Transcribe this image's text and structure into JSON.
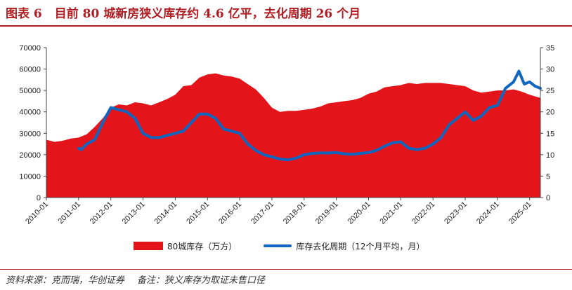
{
  "header": {
    "figure_label": "图表 6",
    "title": "目前 80 城新房狭义库存约 4.6 亿平，去化周期 26 个月"
  },
  "footer": {
    "source": "资料来源：克而瑞，华创证券",
    "note": "备注：狭义库存为取证未售口径"
  },
  "colors": {
    "area": "#e3151a",
    "line": "#1166c0",
    "accent": "#b01e23"
  },
  "chart_data": {
    "type": "area",
    "grid": false,
    "legend_position": "bottom",
    "x_tick_labels": [
      "2010-01",
      "2011-01",
      "2012-01",
      "2013-01",
      "2014-01",
      "2015-01",
      "2016-01",
      "2017-01",
      "2018-01",
      "2019-01",
      "2020-01",
      "2021-01",
      "2022-01",
      "2023-01",
      "2024-01",
      "2025-01"
    ],
    "y_left": {
      "min": 0,
      "max": 70000,
      "ticks": [
        "0",
        "10000",
        "20000",
        "30000",
        "40000",
        "50000",
        "60000",
        "70000"
      ]
    },
    "y_right": {
      "min": 0,
      "max": 35,
      "ticks": [
        "0",
        "5",
        "10",
        "15",
        "20",
        "25",
        "30",
        "35"
      ]
    },
    "x_range": [
      "2010-01",
      "2025-05"
    ],
    "series": [
      {
        "name": "80城库存（万方）",
        "kind": "area",
        "axis": "left",
        "points": [
          [
            "2010-01",
            27000
          ],
          [
            "2010-04",
            26000
          ],
          [
            "2010-07",
            26500
          ],
          [
            "2010-10",
            27500
          ],
          [
            "2011-01",
            28000
          ],
          [
            "2011-04",
            29500
          ],
          [
            "2011-07",
            33000
          ],
          [
            "2011-10",
            37000
          ],
          [
            "2012-01",
            42000
          ],
          [
            "2012-04",
            43500
          ],
          [
            "2012-07",
            43000
          ],
          [
            "2012-10",
            44500
          ],
          [
            "2013-01",
            44000
          ],
          [
            "2013-04",
            43000
          ],
          [
            "2013-07",
            44500
          ],
          [
            "2013-10",
            46000
          ],
          [
            "2014-01",
            48000
          ],
          [
            "2014-04",
            52000
          ],
          [
            "2014-07",
            52500
          ],
          [
            "2014-10",
            56000
          ],
          [
            "2015-01",
            57500
          ],
          [
            "2015-04",
            58000
          ],
          [
            "2015-07",
            57000
          ],
          [
            "2015-10",
            56500
          ],
          [
            "2016-01",
            55500
          ],
          [
            "2016-04",
            53000
          ],
          [
            "2016-07",
            50500
          ],
          [
            "2016-10",
            46500
          ],
          [
            "2017-01",
            42000
          ],
          [
            "2017-04",
            40000
          ],
          [
            "2017-07",
            40500
          ],
          [
            "2017-10",
            40500
          ],
          [
            "2018-01",
            41000
          ],
          [
            "2018-04",
            41500
          ],
          [
            "2018-07",
            42500
          ],
          [
            "2018-10",
            44000
          ],
          [
            "2019-01",
            44500
          ],
          [
            "2019-04",
            45000
          ],
          [
            "2019-07",
            45500
          ],
          [
            "2019-10",
            46500
          ],
          [
            "2020-01",
            48500
          ],
          [
            "2020-04",
            49500
          ],
          [
            "2020-07",
            51500
          ],
          [
            "2020-10",
            52000
          ],
          [
            "2021-01",
            52500
          ],
          [
            "2021-04",
            53500
          ],
          [
            "2021-07",
            53000
          ],
          [
            "2021-10",
            53500
          ],
          [
            "2022-01",
            53500
          ],
          [
            "2022-04",
            53500
          ],
          [
            "2022-07",
            53000
          ],
          [
            "2022-10",
            52500
          ],
          [
            "2023-01",
            52000
          ],
          [
            "2023-04",
            50000
          ],
          [
            "2023-07",
            49000
          ],
          [
            "2023-10",
            49500
          ],
          [
            "2024-01",
            50000
          ],
          [
            "2024-04",
            50000
          ],
          [
            "2024-07",
            50500
          ],
          [
            "2024-10",
            49500
          ],
          [
            "2025-01",
            48000
          ],
          [
            "2025-05",
            46500
          ]
        ]
      },
      {
        "name": "库存去化周期（12个月平均，月）",
        "kind": "line",
        "axis": "right",
        "points": [
          [
            "2011-01",
            11.5
          ],
          [
            "2011-02",
            11.2
          ],
          [
            "2011-04",
            12.5
          ],
          [
            "2011-07",
            13.5
          ],
          [
            "2011-10",
            17.5
          ],
          [
            "2012-01",
            21.0
          ],
          [
            "2012-04",
            20.5
          ],
          [
            "2012-07",
            20.0
          ],
          [
            "2012-10",
            18.5
          ],
          [
            "2013-01",
            15.0
          ],
          [
            "2013-04",
            14.0
          ],
          [
            "2013-07",
            14.0
          ],
          [
            "2013-10",
            14.5
          ],
          [
            "2014-01",
            15.0
          ],
          [
            "2014-04",
            15.5
          ],
          [
            "2014-07",
            17.5
          ],
          [
            "2014-10",
            19.5
          ],
          [
            "2015-01",
            19.5
          ],
          [
            "2015-04",
            18.5
          ],
          [
            "2015-07",
            16.0
          ],
          [
            "2015-10",
            15.5
          ],
          [
            "2016-01",
            15.0
          ],
          [
            "2016-04",
            12.5
          ],
          [
            "2016-07",
            11.0
          ],
          [
            "2016-10",
            10.0
          ],
          [
            "2017-01",
            9.5
          ],
          [
            "2017-04",
            9.0
          ],
          [
            "2017-07",
            8.8
          ],
          [
            "2017-10",
            9.2
          ],
          [
            "2018-01",
            10.0
          ],
          [
            "2018-04",
            10.3
          ],
          [
            "2018-07",
            10.4
          ],
          [
            "2018-10",
            10.4
          ],
          [
            "2019-01",
            10.5
          ],
          [
            "2019-04",
            10.2
          ],
          [
            "2019-07",
            10.1
          ],
          [
            "2019-10",
            10.3
          ],
          [
            "2020-01",
            10.5
          ],
          [
            "2020-04",
            11.0
          ],
          [
            "2020-07",
            12.0
          ],
          [
            "2020-10",
            12.8
          ],
          [
            "2021-01",
            13.0
          ],
          [
            "2021-04",
            11.5
          ],
          [
            "2021-07",
            11.2
          ],
          [
            "2021-10",
            11.5
          ],
          [
            "2022-01",
            12.5
          ],
          [
            "2022-04",
            14.0
          ],
          [
            "2022-07",
            17.0
          ],
          [
            "2022-10",
            18.5
          ],
          [
            "2023-01",
            20.0
          ],
          [
            "2023-04",
            18.0
          ],
          [
            "2023-07",
            19.0
          ],
          [
            "2023-10",
            21.0
          ],
          [
            "2024-01",
            21.5
          ],
          [
            "2024-04",
            25.5
          ],
          [
            "2024-07",
            27.0
          ],
          [
            "2024-09",
            29.5
          ],
          [
            "2024-11",
            26.5
          ],
          [
            "2025-01",
            27.0
          ],
          [
            "2025-03",
            26.0
          ],
          [
            "2025-05",
            25.5
          ]
        ]
      }
    ]
  }
}
